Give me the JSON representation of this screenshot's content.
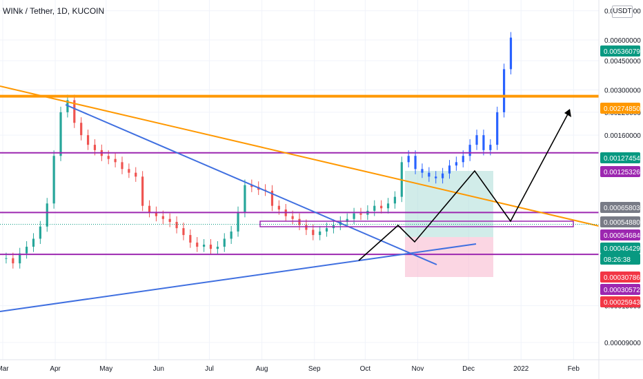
{
  "title": "WINk / Tether, 1D, KUCOIN",
  "unit_button": "USDT",
  "chart_data": {
    "type": "candlestick",
    "symbol": "WINk / Tether",
    "interval": "1D",
    "exchange": "KUCOIN",
    "yscale": "log",
    "y_ticks": [
      {
        "label": "0.00900000",
        "value": 0.009
      },
      {
        "label": "0.00600000",
        "value": 0.006
      },
      {
        "label": "0.00450000",
        "value": 0.0045
      },
      {
        "label": "0.00300000",
        "value": 0.003
      },
      {
        "label": "0.00220000",
        "value": 0.0022
      },
      {
        "label": "0.00160000",
        "value": 0.0016
      },
      {
        "label": "0.00015000",
        "value": 0.00015
      },
      {
        "label": "0.00009000",
        "value": 9e-05
      }
    ],
    "x_ticks": [
      {
        "label": "Mar",
        "day": 0
      },
      {
        "label": "Apr",
        "day": 31
      },
      {
        "label": "May",
        "day": 61
      },
      {
        "label": "Jun",
        "day": 92
      },
      {
        "label": "Jul",
        "day": 122
      },
      {
        "label": "Aug",
        "day": 153
      },
      {
        "label": "Sep",
        "day": 184
      },
      {
        "label": "Oct",
        "day": 214
      },
      {
        "label": "Nov",
        "day": 245
      },
      {
        "label": "Dec",
        "day": 275
      },
      {
        "label": "2022",
        "day": 306
      },
      {
        "label": "Feb",
        "day": 337
      }
    ],
    "price_tags": [
      {
        "label": "0.00536079",
        "color": "#089981"
      },
      {
        "label": "0.00274850",
        "color": "#ff9800"
      },
      {
        "label": "0.00127454",
        "color": "#089981"
      },
      {
        "label": "0.00125326",
        "color": "#9c27b0"
      },
      {
        "label": "0.00065803",
        "color": "#787b86"
      },
      {
        "label": "0.00054880",
        "color": "#787b86"
      },
      {
        "label": "0.00054684",
        "color": "#9c27b0"
      },
      {
        "label": "0.00046429",
        "color": "#089981"
      },
      {
        "label": "08:26:38",
        "color": "#089981"
      },
      {
        "label": "0.00030786",
        "color": "#f23645"
      },
      {
        "label": "0.00030572",
        "color": "#9c27b0"
      },
      {
        "label": "0.00025943",
        "color": "#f23645"
      }
    ],
    "horizontal_levels": [
      {
        "value": 0.0027485,
        "color": "#ff9800"
      },
      {
        "value": 0.00125326,
        "color": "#9c27b0"
      },
      {
        "value": 0.00054684,
        "color": "#9c27b0"
      },
      {
        "value": 0.00030572,
        "color": "#9c27b0"
      }
    ],
    "current_price": 0.00046429,
    "candles_close": [
      0.00029,
      0.00027,
      0.00031,
      0.00034,
      0.00038,
      0.00045,
      0.00062,
      0.0012,
      0.0022,
      0.0026,
      0.0019,
      0.0016,
      0.0014,
      0.0013,
      0.0012,
      0.00115,
      0.0011,
      0.001,
      0.00095,
      0.0009,
      0.0006,
      0.00055,
      0.00052,
      0.0005,
      0.00048,
      0.00044,
      0.0004,
      0.00036,
      0.00034,
      0.00035,
      0.00033,
      0.00034,
      0.00038,
      0.00042,
      0.00055,
      0.0008,
      0.00078,
      0.00075,
      0.00074,
      0.0006,
      0.00057,
      0.00052,
      0.0005,
      0.00046,
      0.00043,
      0.0004,
      0.00042,
      0.00044,
      0.00046,
      0.00048,
      0.0005,
      0.00054,
      0.00053,
      0.00056,
      0.0006,
      0.00058,
      0.00062,
      0.00068,
      0.0011,
      0.0012,
      0.001,
      0.00095,
      0.0009,
      0.00088,
      0.00094,
      0.00105,
      0.0011,
      0.0012,
      0.0014,
      0.0016,
      0.0013,
      0.0014,
      0.0022,
      0.004,
      0.0062
    ]
  }
}
